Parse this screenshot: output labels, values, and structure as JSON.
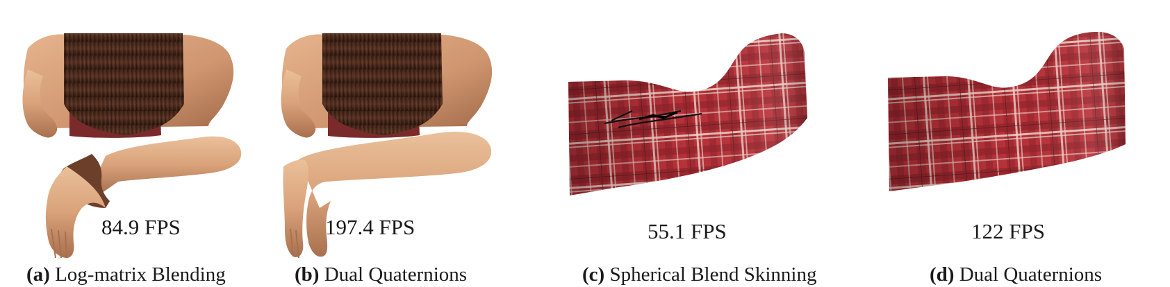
{
  "panels": [
    {
      "tag": "(a)",
      "caption": "Log-matrix Blending",
      "fps": "84.9 FPS",
      "subject": "character-arm"
    },
    {
      "tag": "(b)",
      "caption": "Dual Quaternions",
      "fps": "197.4 FPS",
      "subject": "character-arm"
    },
    {
      "tag": "(c)",
      "caption": "Spherical Blend Skinning",
      "fps": "55.1 FPS",
      "subject": "plaid-cloth"
    },
    {
      "tag": "(d)",
      "caption": "Dual Quaternions",
      "fps": "122 FPS",
      "subject": "plaid-cloth"
    }
  ],
  "colors": {
    "skin": "#d9a27a",
    "skin_shadow": "#a8704e",
    "hair": "#4a2a1c",
    "hair_dark": "#2a160e",
    "bra": "#7a2a2a",
    "plaid_red": "#b8323a",
    "plaid_dark": "#7e1d24",
    "plaid_light": "#e8c8c0"
  }
}
